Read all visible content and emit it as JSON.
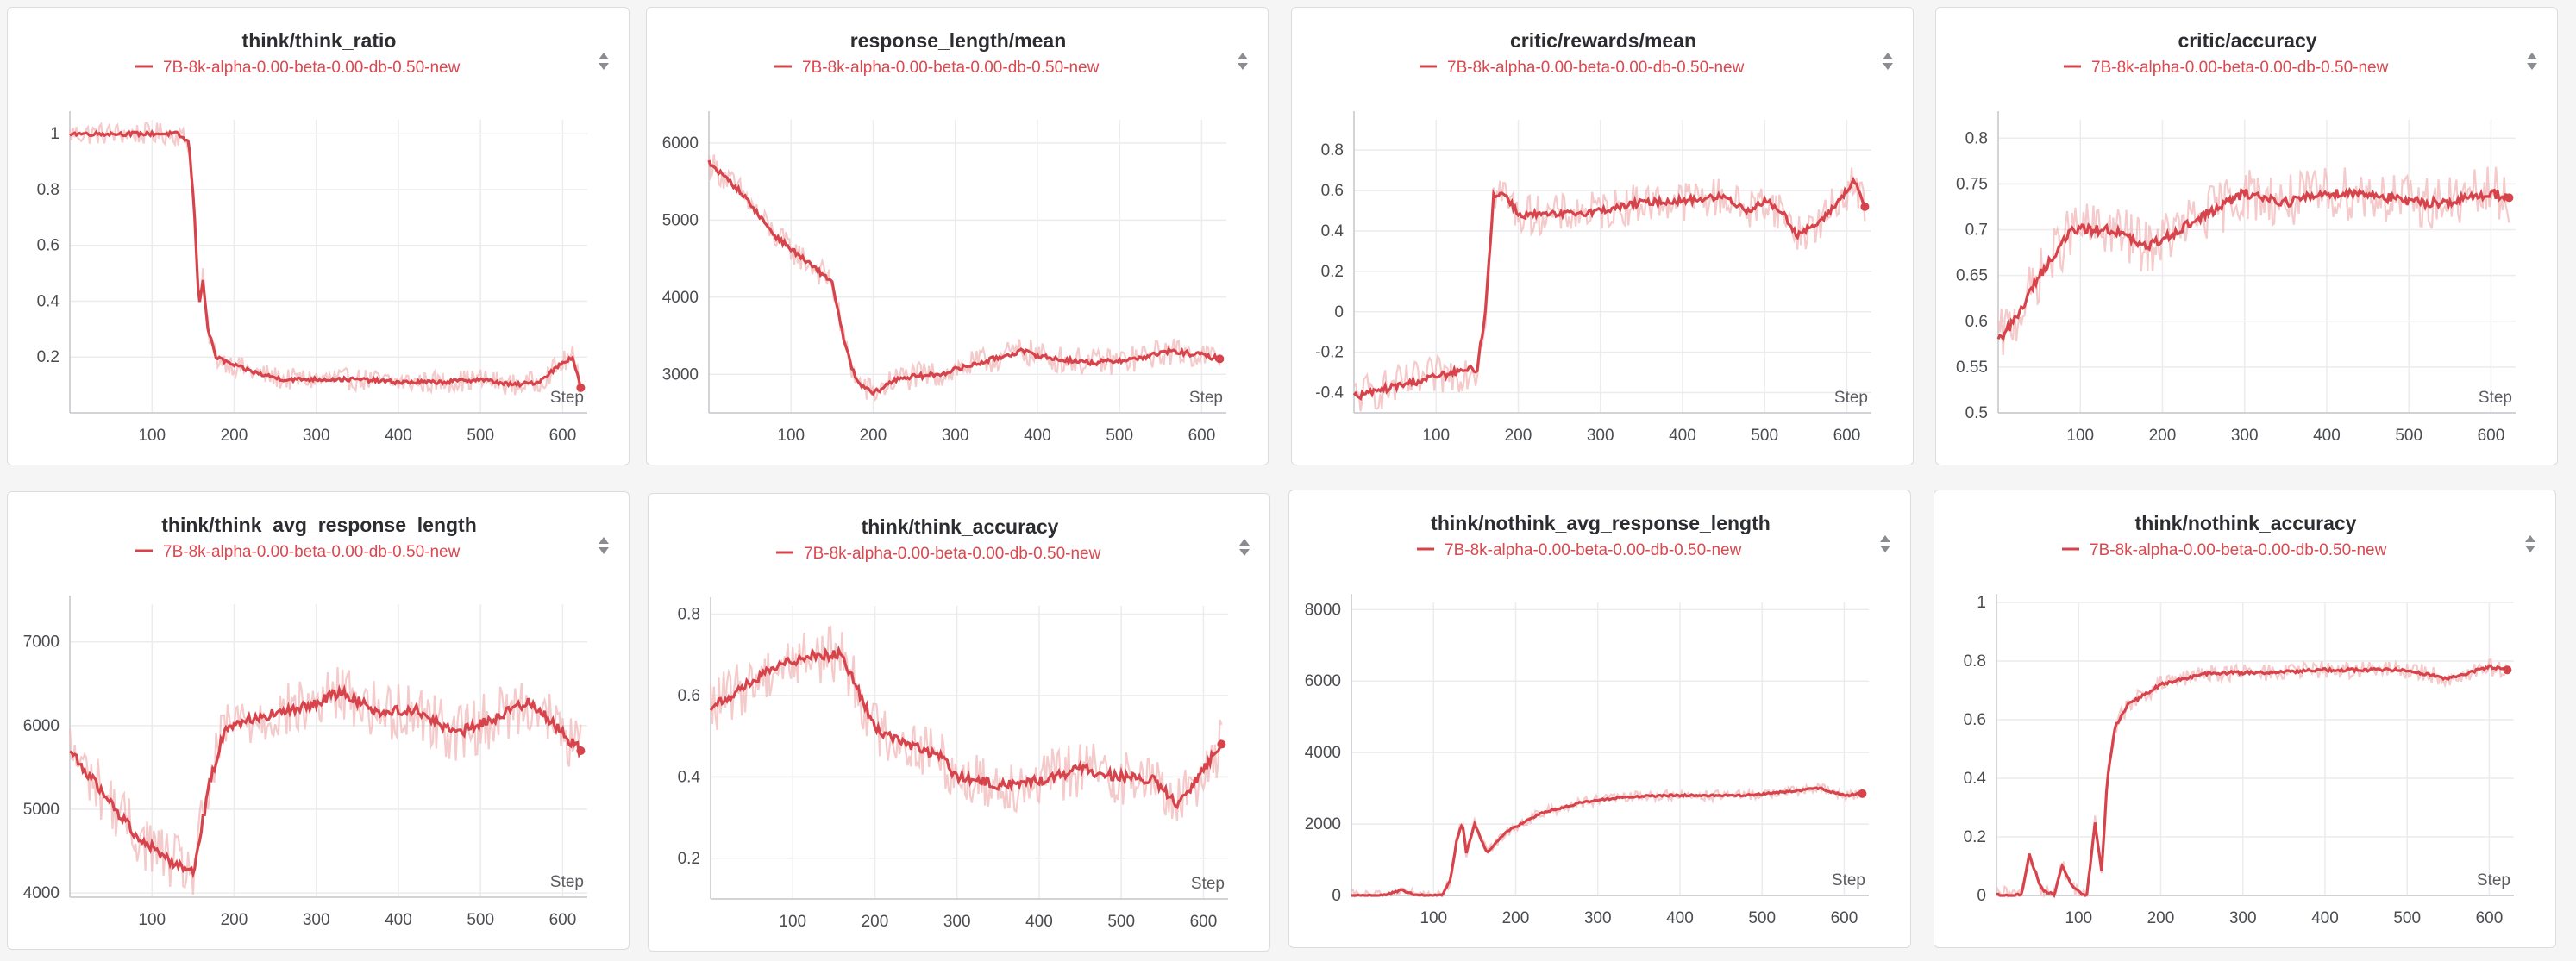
{
  "accent_color": "#d6434b",
  "raw_color": "#f2b8ba",
  "legend_label": "7B-8k-alpha-0.00-beta-0.00-db-0.50-new",
  "sort_icon": "up-down-sort-icon",
  "chart_data": [
    {
      "type": "line",
      "title": "think/think_ratio",
      "xlabel": "Step",
      "xlim": [
        0,
        630
      ],
      "ylim": [
        0,
        1.05
      ],
      "xticks": [
        100,
        200,
        300,
        400,
        500,
        600
      ],
      "yticks": [
        0.2,
        0.4,
        0.6,
        0.8,
        1
      ],
      "ytick_labels": [
        "0.2",
        "0.4",
        "0.6",
        "0.8",
        "1"
      ],
      "series": [
        {
          "name": "7B-8k-alpha-0.00-beta-0.00-db-0.50-new",
          "points": [
            [
              0,
              1
            ],
            [
              130,
              1
            ],
            [
              145,
              0.97
            ],
            [
              152,
              0.7
            ],
            [
              157,
              0.38
            ],
            [
              162,
              0.48
            ],
            [
              168,
              0.3
            ],
            [
              178,
              0.2
            ],
            [
              200,
              0.17
            ],
            [
              230,
              0.14
            ],
            [
              260,
              0.12
            ],
            [
              300,
              0.12
            ],
            [
              350,
              0.12
            ],
            [
              400,
              0.11
            ],
            [
              450,
              0.11
            ],
            [
              500,
              0.12
            ],
            [
              540,
              0.1
            ],
            [
              570,
              0.11
            ],
            [
              600,
              0.18
            ],
            [
              612,
              0.2
            ],
            [
              622,
              0.09
            ]
          ],
          "noise": 0.04
        }
      ]
    },
    {
      "type": "line",
      "title": "response_length/mean",
      "xlabel": "Step",
      "xlim": [
        0,
        630
      ],
      "ylim": [
        2500,
        6300
      ],
      "xticks": [
        100,
        200,
        300,
        400,
        500,
        600
      ],
      "yticks": [
        3000,
        4000,
        5000,
        6000
      ],
      "ytick_labels": [
        "3000",
        "4000",
        "5000",
        "6000"
      ],
      "series": [
        {
          "name": "7B-8k-alpha-0.00-beta-0.00-db-0.50-new",
          "points": [
            [
              0,
              5750
            ],
            [
              40,
              5350
            ],
            [
              80,
              4800
            ],
            [
              120,
              4450
            ],
            [
              150,
              4200
            ],
            [
              165,
              3400
            ],
            [
              180,
              2900
            ],
            [
              200,
              2750
            ],
            [
              230,
              2950
            ],
            [
              280,
              3000
            ],
            [
              330,
              3150
            ],
            [
              380,
              3300
            ],
            [
              420,
              3200
            ],
            [
              470,
              3150
            ],
            [
              520,
              3200
            ],
            [
              560,
              3300
            ],
            [
              600,
              3250
            ],
            [
              622,
              3200
            ]
          ],
          "noise": 180
        }
      ]
    },
    {
      "type": "line",
      "title": "critic/rewards/mean",
      "xlabel": "Step",
      "xlim": [
        0,
        630
      ],
      "ylim": [
        -0.5,
        0.95
      ],
      "xticks": [
        100,
        200,
        300,
        400,
        500,
        600
      ],
      "yticks": [
        -0.4,
        -0.2,
        0,
        0.2,
        0.4,
        0.6,
        0.8
      ],
      "ytick_labels": [
        "-0.4",
        "-0.2",
        "0",
        "0.2",
        "0.4",
        "0.6",
        "0.8"
      ],
      "series": [
        {
          "name": "7B-8k-alpha-0.00-beta-0.00-db-0.50-new",
          "points": [
            [
              0,
              -0.42
            ],
            [
              50,
              -0.37
            ],
            [
              100,
              -0.32
            ],
            [
              150,
              -0.28
            ],
            [
              160,
              0.0
            ],
            [
              170,
              0.58
            ],
            [
              185,
              0.58
            ],
            [
              200,
              0.48
            ],
            [
              250,
              0.48
            ],
            [
              300,
              0.5
            ],
            [
              350,
              0.54
            ],
            [
              400,
              0.55
            ],
            [
              450,
              0.57
            ],
            [
              480,
              0.5
            ],
            [
              500,
              0.55
            ],
            [
              520,
              0.5
            ],
            [
              540,
              0.38
            ],
            [
              570,
              0.45
            ],
            [
              590,
              0.55
            ],
            [
              610,
              0.65
            ],
            [
              622,
              0.52
            ]
          ],
          "noise": 0.1
        }
      ]
    },
    {
      "type": "line",
      "title": "critic/accuracy",
      "xlabel": "Step",
      "xlim": [
        0,
        630
      ],
      "ylim": [
        0.5,
        0.82
      ],
      "xticks": [
        100,
        200,
        300,
        400,
        500,
        600
      ],
      "yticks": [
        0.5,
        0.55,
        0.6,
        0.65,
        0.7,
        0.75,
        0.8
      ],
      "ytick_labels": [
        "0.5",
        "0.55",
        "0.6",
        "0.65",
        "0.7",
        "0.75",
        "0.8"
      ],
      "series": [
        {
          "name": "7B-8k-alpha-0.00-beta-0.00-db-0.50-new",
          "points": [
            [
              0,
              0.58
            ],
            [
              20,
              0.6
            ],
            [
              50,
              0.65
            ],
            [
              90,
              0.7
            ],
            [
              140,
              0.7
            ],
            [
              180,
              0.68
            ],
            [
              220,
              0.7
            ],
            [
              260,
              0.72
            ],
            [
              300,
              0.74
            ],
            [
              350,
              0.73
            ],
            [
              400,
              0.74
            ],
            [
              450,
              0.74
            ],
            [
              500,
              0.73
            ],
            [
              550,
              0.73
            ],
            [
              600,
              0.74
            ],
            [
              622,
              0.735
            ]
          ],
          "noise": 0.03
        }
      ]
    },
    {
      "type": "line",
      "title": "think/think_avg_response_length",
      "xlabel": "Step",
      "xlim": [
        0,
        630
      ],
      "ylim": [
        3950,
        7450
      ],
      "xticks": [
        100,
        200,
        300,
        400,
        500,
        600
      ],
      "yticks": [
        4000,
        5000,
        6000,
        7000
      ],
      "ytick_labels": [
        "4000",
        "5000",
        "6000",
        "7000"
      ],
      "series": [
        {
          "name": "7B-8k-alpha-0.00-beta-0.00-db-0.50-new",
          "points": [
            [
              0,
              5700
            ],
            [
              40,
              5200
            ],
            [
              80,
              4700
            ],
            [
              120,
              4400
            ],
            [
              150,
              4250
            ],
            [
              170,
              5300
            ],
            [
              190,
              6000
            ],
            [
              230,
              6100
            ],
            [
              280,
              6200
            ],
            [
              330,
              6400
            ],
            [
              380,
              6150
            ],
            [
              420,
              6200
            ],
            [
              470,
              5900
            ],
            [
              520,
              6100
            ],
            [
              560,
              6300
            ],
            [
              590,
              6000
            ],
            [
              622,
              5700
            ]
          ],
          "noise": 350
        }
      ]
    },
    {
      "type": "line",
      "title": "think/think_accuracy",
      "xlabel": "Step",
      "xlim": [
        0,
        630
      ],
      "ylim": [
        0.1,
        0.82
      ],
      "xticks": [
        100,
        200,
        300,
        400,
        500,
        600
      ],
      "yticks": [
        0.2,
        0.4,
        0.6,
        0.8
      ],
      "ytick_labels": [
        "0.2",
        "0.4",
        "0.6",
        "0.8"
      ],
      "series": [
        {
          "name": "7B-8k-alpha-0.00-beta-0.00-db-0.50-new",
          "points": [
            [
              0,
              0.57
            ],
            [
              40,
              0.62
            ],
            [
              80,
              0.67
            ],
            [
              120,
              0.7
            ],
            [
              160,
              0.7
            ],
            [
              200,
              0.52
            ],
            [
              240,
              0.48
            ],
            [
              280,
              0.45
            ],
            [
              300,
              0.4
            ],
            [
              350,
              0.38
            ],
            [
              400,
              0.39
            ],
            [
              450,
              0.42
            ],
            [
              500,
              0.4
            ],
            [
              540,
              0.39
            ],
            [
              570,
              0.33
            ],
            [
              600,
              0.42
            ],
            [
              622,
              0.48
            ]
          ],
          "noise": 0.07
        }
      ]
    },
    {
      "type": "line",
      "title": "think/nothink_avg_response_length",
      "xlabel": "Step",
      "xlim": [
        0,
        630
      ],
      "ylim": [
        0,
        8200
      ],
      "xticks": [
        100,
        200,
        300,
        400,
        500,
        600
      ],
      "yticks": [
        0,
        2000,
        4000,
        6000,
        8000
      ],
      "ytick_labels": [
        "0",
        "2000",
        "4000",
        "6000",
        "8000"
      ],
      "series": [
        {
          "name": "7B-8k-alpha-0.00-beta-0.00-db-0.50-new",
          "points": [
            [
              0,
              0
            ],
            [
              40,
              0
            ],
            [
              60,
              150
            ],
            [
              80,
              0
            ],
            [
              110,
              0
            ],
            [
              120,
              400
            ],
            [
              128,
              1500
            ],
            [
              135,
              2050
            ],
            [
              140,
              1200
            ],
            [
              150,
              2000
            ],
            [
              165,
              1200
            ],
            [
              190,
              1800
            ],
            [
              230,
              2300
            ],
            [
              280,
              2600
            ],
            [
              330,
              2750
            ],
            [
              380,
              2800
            ],
            [
              430,
              2800
            ],
            [
              480,
              2800
            ],
            [
              530,
              2900
            ],
            [
              570,
              3000
            ],
            [
              600,
              2800
            ],
            [
              622,
              2850
            ]
          ],
          "noise": 150
        }
      ]
    },
    {
      "type": "line",
      "title": "think/nothink_accuracy",
      "xlabel": "Step",
      "xlim": [
        0,
        630
      ],
      "ylim": [
        0,
        1
      ],
      "xticks": [
        100,
        200,
        300,
        400,
        500,
        600
      ],
      "yticks": [
        0,
        0.2,
        0.4,
        0.6,
        0.8,
        1
      ],
      "ytick_labels": [
        "0",
        "0.2",
        "0.4",
        "0.6",
        "0.8",
        "1"
      ],
      "series": [
        {
          "name": "7B-8k-alpha-0.00-beta-0.00-db-0.50-new",
          "points": [
            [
              0,
              0
            ],
            [
              30,
              0
            ],
            [
              40,
              0.14
            ],
            [
              55,
              0.02
            ],
            [
              70,
              0
            ],
            [
              80,
              0.1
            ],
            [
              95,
              0.02
            ],
            [
              110,
              0
            ],
            [
              120,
              0.25
            ],
            [
              128,
              0.08
            ],
            [
              135,
              0.4
            ],
            [
              145,
              0.58
            ],
            [
              160,
              0.65
            ],
            [
              200,
              0.72
            ],
            [
              260,
              0.76
            ],
            [
              320,
              0.76
            ],
            [
              400,
              0.77
            ],
            [
              450,
              0.77
            ],
            [
              500,
              0.77
            ],
            [
              550,
              0.74
            ],
            [
              600,
              0.78
            ],
            [
              622,
              0.77
            ]
          ],
          "noise": 0.03
        }
      ]
    }
  ]
}
